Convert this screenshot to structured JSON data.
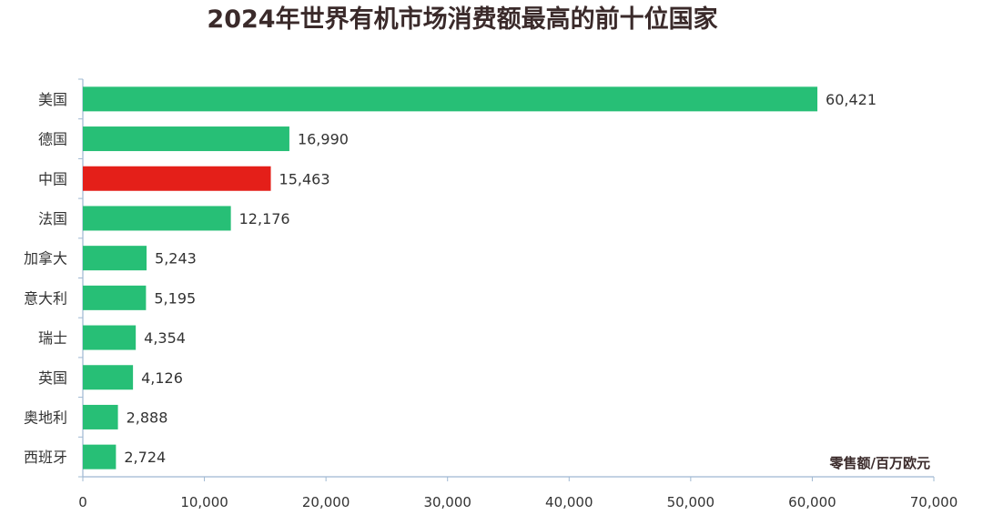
{
  "chart_data": {
    "type": "bar",
    "orientation": "horizontal",
    "title": "2024年世界有机市场消费额最高的前十位国家",
    "unit_label": "零售额/百万欧元",
    "categories": [
      "美国",
      "德国",
      "中国",
      "法国",
      "加拿大",
      "意大利",
      "瑞士",
      "英国",
      "奥地利",
      "西班牙"
    ],
    "values": [
      60421,
      16990,
      15463,
      12176,
      5243,
      5195,
      4354,
      4126,
      2888,
      2724
    ],
    "value_labels": [
      "60,421",
      "16,990",
      "15,463",
      "12,176",
      "5,243",
      "5,195",
      "4,354",
      "4,126",
      "2,888",
      "2,724"
    ],
    "xlim": [
      0,
      70000
    ],
    "x_ticks": [
      0,
      10000,
      20000,
      30000,
      40000,
      50000,
      60000,
      70000
    ],
    "x_tick_labels": [
      "0",
      "10,000",
      "20,000",
      "30,000",
      "40,000",
      "50,000",
      "60,000",
      "70,000"
    ],
    "grid": false,
    "legend": "none",
    "colors": {
      "default_bar": "#27bf76",
      "highlight_bar": "#e41f19",
      "axis": "#9fb8d2"
    },
    "highlight_category": "中国"
  }
}
